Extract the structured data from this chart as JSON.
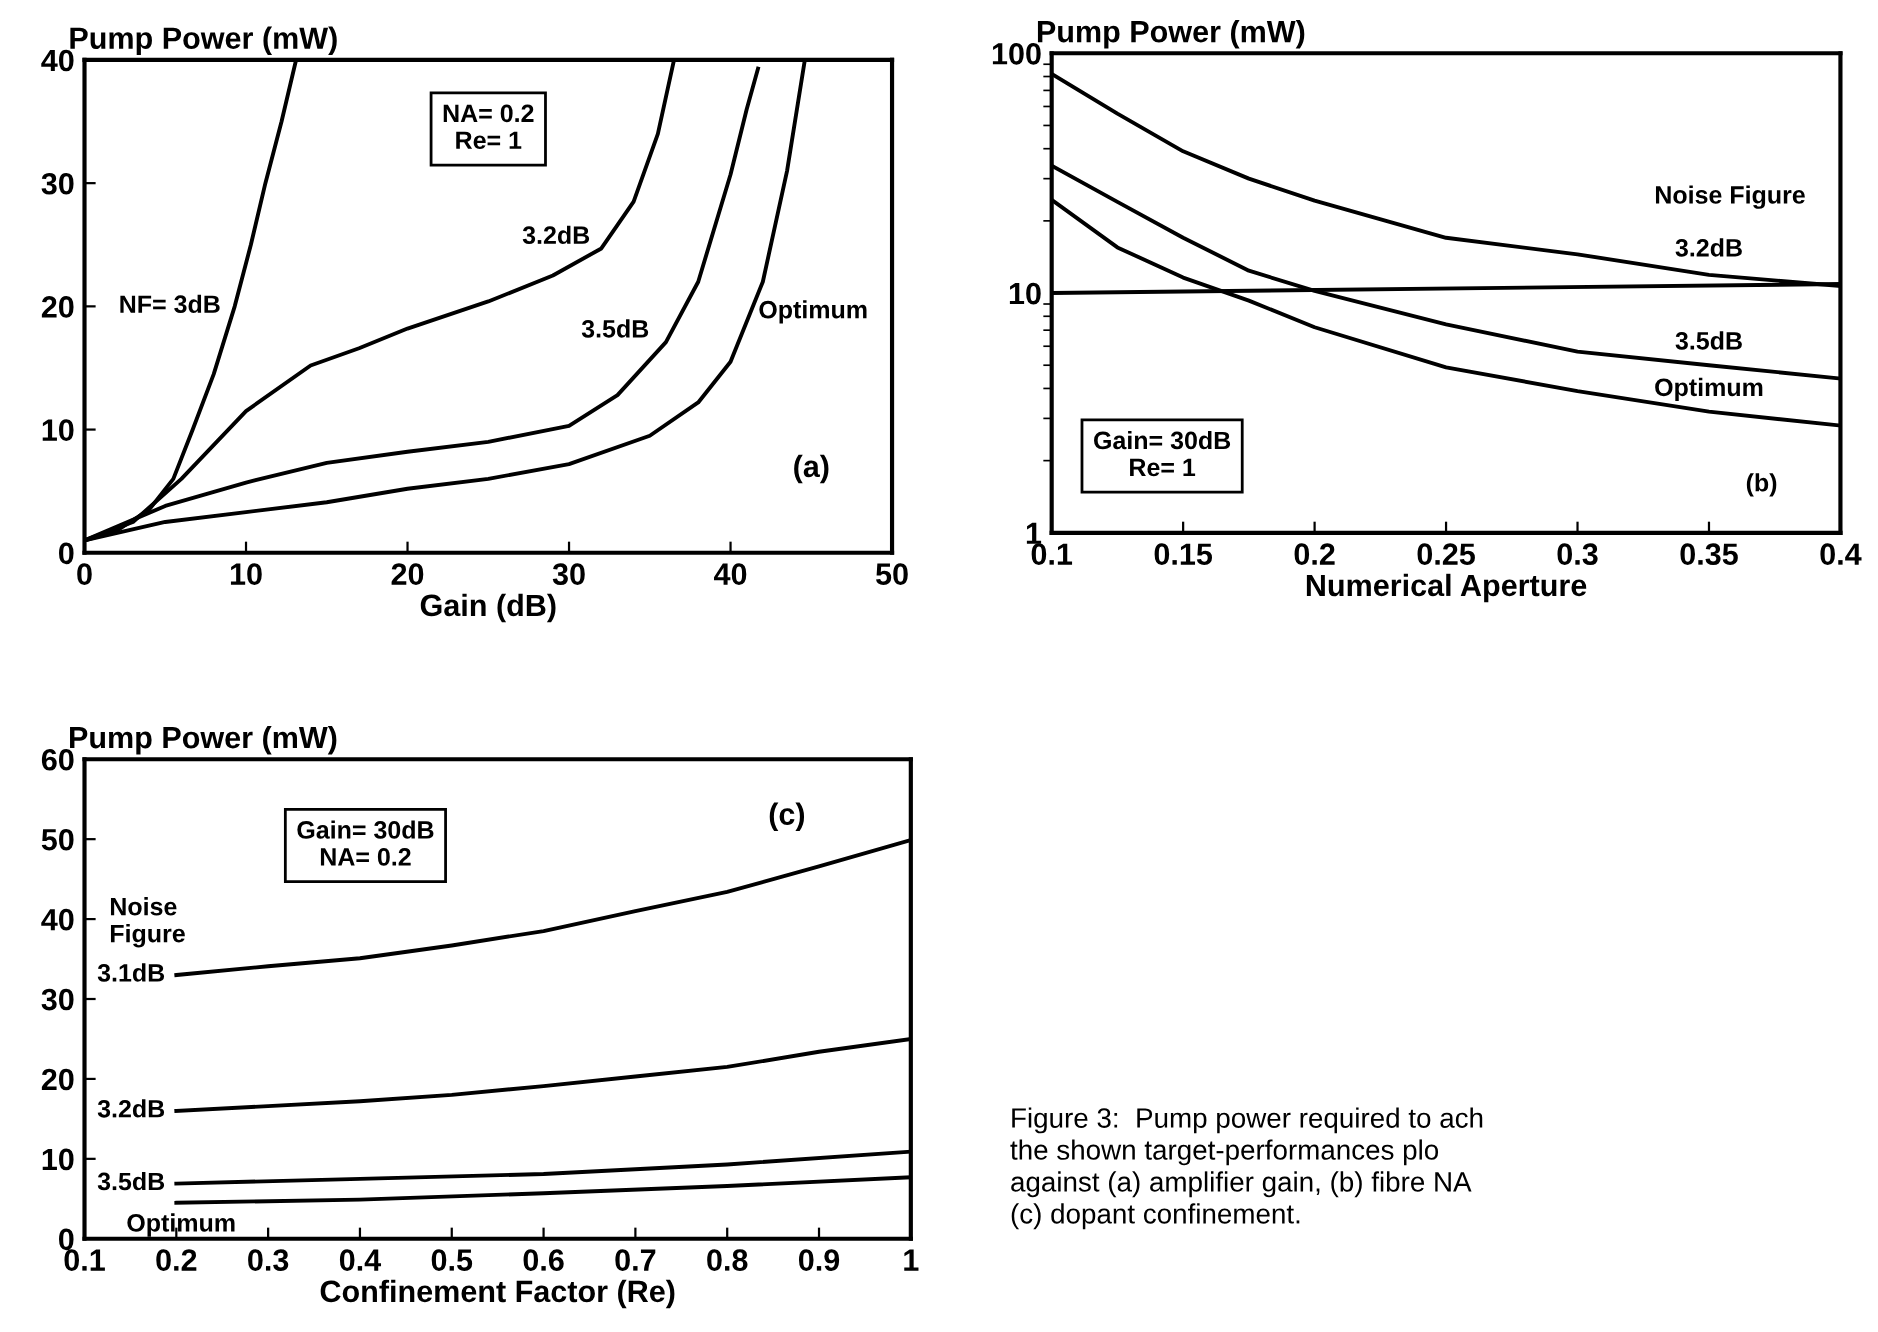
{
  "chart_data": [
    {
      "type": "line",
      "xlabel": "Gain (dB)",
      "ylabel": "Pump Power (mW)",
      "xlim": [
        0,
        50
      ],
      "ylim": [
        0,
        40
      ],
      "xticks": [
        0,
        10,
        20,
        30,
        40,
        50
      ],
      "yticks": [
        0,
        10,
        20,
        30,
        40
      ],
      "grid": false,
      "legend": false,
      "series": [
        {
          "name": "NF= 3dB",
          "color": "#000000",
          "x": [
            0,
            2,
            4,
            5.5,
            6.7,
            8,
            9.3,
            10.3,
            11.2,
            12.2,
            13.1
          ],
          "values": [
            1,
            1.8,
            3.5,
            6,
            10,
            14.5,
            20,
            25,
            30,
            35,
            40
          ]
        },
        {
          "name": "3.2dB",
          "color": "#000000",
          "x": [
            0,
            3,
            6,
            10,
            14,
            17,
            20,
            25,
            29,
            32,
            34,
            35.5,
            36.5
          ],
          "values": [
            1,
            2.5,
            6,
            11.5,
            15.2,
            16.6,
            18.2,
            20.4,
            22.5,
            24.7,
            28.5,
            34,
            40
          ]
        },
        {
          "name": "3.5dB",
          "color": "#000000",
          "x": [
            0,
            5,
            10,
            15,
            20,
            25,
            30,
            33,
            36,
            38,
            40,
            41,
            41.7
          ],
          "values": [
            1,
            3.8,
            5.7,
            7.3,
            8.2,
            9,
            10.3,
            12.8,
            17.1,
            22,
            30.7,
            36,
            39.3
          ]
        },
        {
          "name": "Optimum",
          "color": "#000000",
          "x": [
            0,
            5,
            10,
            15,
            20,
            25,
            30,
            35,
            38,
            40,
            42,
            43.5,
            44.6
          ],
          "values": [
            1,
            2.5,
            3.3,
            4.1,
            5.2,
            6,
            7.2,
            9.5,
            12.2,
            15.5,
            22,
            31,
            40
          ]
        }
      ],
      "annotations": [
        "NA= 0.2\nRe= 1",
        "(a)"
      ]
    },
    {
      "type": "line",
      "xlabel": "Numerical Aperture",
      "ylabel": "Pump Power (mW)",
      "log": "y",
      "xlim": [
        0.1,
        0.4
      ],
      "ylim": [
        1,
        100
      ],
      "xticks": [
        0.1,
        0.15,
        0.2,
        0.25,
        0.3,
        0.35,
        0.4
      ],
      "yticks": [
        1,
        10,
        100
      ],
      "grid": false,
      "legend": false,
      "series": [
        {
          "name": "3.2dB",
          "color": "#000000",
          "x": [
            0.1,
            0.125,
            0.15,
            0.175,
            0.2,
            0.25,
            0.3,
            0.35,
            0.4
          ],
          "values": [
            82,
            56,
            39,
            30,
            24.3,
            17,
            14.5,
            11.9,
            10.7
          ]
        },
        {
          "name": "3.5dB",
          "color": "#000000",
          "x": [
            0.1,
            0.125,
            0.15,
            0.175,
            0.2,
            0.25,
            0.3,
            0.35,
            0.4
          ],
          "values": [
            34,
            24,
            17,
            12.4,
            10.2,
            7.4,
            5.7,
            5.0,
            4.4
          ]
        },
        {
          "name": "Optimum",
          "color": "#000000",
          "x": [
            0.1,
            0.125,
            0.15,
            0.175,
            0.2,
            0.25,
            0.3,
            0.35,
            0.4
          ],
          "values": [
            24.5,
            15.5,
            11.6,
            9.3,
            7.2,
            4.9,
            3.9,
            3.2,
            2.8
          ]
        },
        {
          "color": "#000000",
          "x": [
            0.1,
            0.4
          ],
          "values": [
            10,
            10.9
          ]
        }
      ],
      "annotations": [
        "Noise Figure",
        "Gain= 30dB\nRe= 1",
        "(b)"
      ]
    },
    {
      "type": "line",
      "xlabel": "Confinement Factor (Re)",
      "ylabel": "Pump Power (mW)",
      "xlim": [
        0.1,
        1
      ],
      "ylim": [
        0,
        60
      ],
      "xticks": [
        0.1,
        0.2,
        0.3,
        0.4,
        0.5,
        0.6,
        0.7,
        0.8,
        0.9,
        1
      ],
      "yticks": [
        0,
        10,
        20,
        30,
        40,
        50,
        60
      ],
      "grid": false,
      "legend": false,
      "series": [
        {
          "name": "3.1dB",
          "color": "#000000",
          "x": [
            0.2,
            0.3,
            0.4,
            0.5,
            0.6,
            0.7,
            0.8,
            0.9,
            1.0
          ],
          "values": [
            33,
            34.1,
            35.1,
            36.7,
            38.5,
            41,
            43.4,
            46.6,
            49.9
          ]
        },
        {
          "name": "3.2dB",
          "color": "#000000",
          "x": [
            0.2,
            0.3,
            0.4,
            0.5,
            0.6,
            0.7,
            0.8,
            0.9,
            1.0
          ],
          "values": [
            16,
            16.6,
            17.2,
            18,
            19.1,
            20.3,
            21.5,
            23.4,
            25
          ]
        },
        {
          "name": "3.5dB",
          "color": "#000000",
          "x": [
            0.2,
            0.4,
            0.6,
            0.8,
            1.0
          ],
          "values": [
            6.9,
            7.5,
            8.1,
            9.3,
            10.9
          ]
        },
        {
          "name": "Optimum",
          "color": "#000000",
          "x": [
            0.2,
            0.4,
            0.6,
            0.8,
            1.0
          ],
          "values": [
            4.5,
            4.9,
            5.7,
            6.6,
            7.7
          ]
        }
      ],
      "annotations": [
        "Gain= 30dB\nNA= 0.2",
        "(c)",
        "Noise\nFigure",
        "Figure 3:  Pump power required to ach\nthe shown target-performances plo\nagainst (a) amplifier gain, (b) fibre NA\n(c) dopant confinement."
      ]
    }
  ]
}
